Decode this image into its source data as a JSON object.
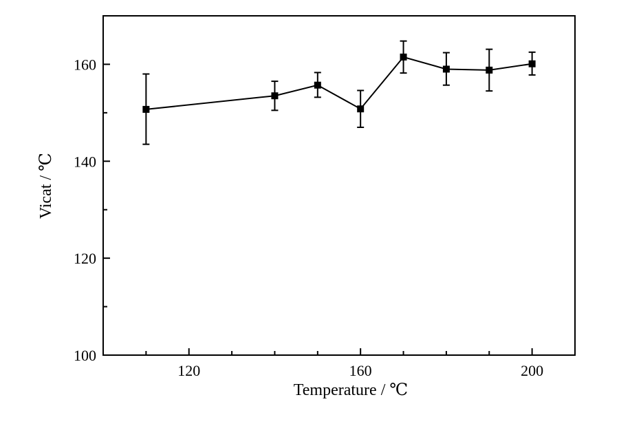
{
  "chart_data": {
    "type": "line",
    "title": "",
    "xlabel": "Temperature / ℃",
    "ylabel": "Vicat / ℃",
    "xlim": [
      100,
      210
    ],
    "ylim": [
      100,
      170
    ],
    "x_ticks": [
      120,
      160,
      200
    ],
    "x_tick_labels": [
      "120",
      "160",
      "200"
    ],
    "y_ticks": [
      100,
      120,
      140,
      160
    ],
    "y_tick_labels": [
      "100",
      "120",
      "140",
      "160"
    ],
    "grid": false,
    "legend": "none",
    "series": [
      {
        "x": [
          110,
          140,
          150,
          160,
          170,
          180,
          190,
          200
        ],
        "y": [
          150.7,
          153.5,
          155.7,
          150.8,
          161.5,
          159.0,
          158.8,
          160.1
        ],
        "error_upper": [
          158.0,
          156.5,
          158.3,
          154.6,
          164.8,
          162.4,
          163.1,
          162.5
        ],
        "error_lower": [
          143.5,
          150.5,
          153.2,
          147.0,
          158.2,
          155.7,
          154.5,
          157.8
        ],
        "marker": "square",
        "color": "#000000"
      }
    ]
  }
}
